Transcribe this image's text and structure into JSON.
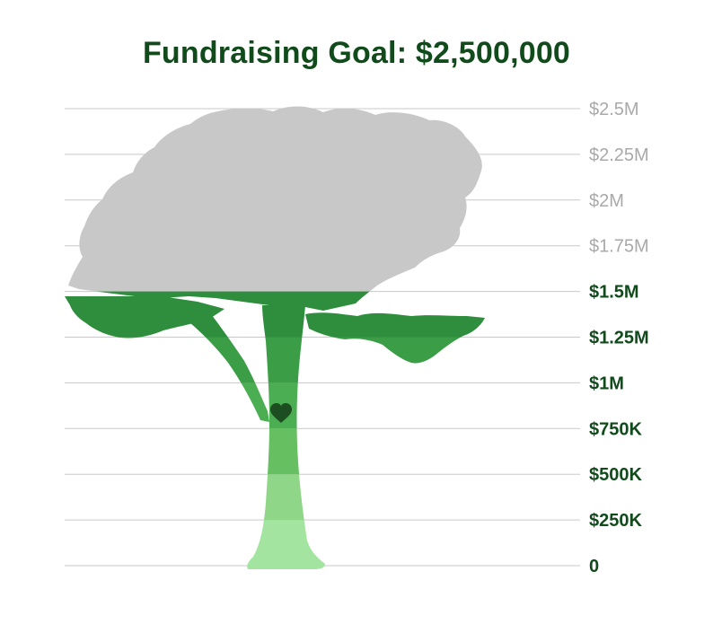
{
  "title": "Fundraising Goal: $2,500,000",
  "colors": {
    "title": "#114b1c",
    "unfilled": "#c8c8c8",
    "reached_label": "#114b1c",
    "unreached_label": "#a9a9a9",
    "gridline": "#c9c9c9",
    "heart": "#1c4e22",
    "bands": [
      "#a3e4a0",
      "#8fd688",
      "#66c062",
      "#4cae52",
      "#3b9e47",
      "#2e8e3e"
    ]
  },
  "chart_data": {
    "type": "thermometer",
    "title": "Fundraising Goal: $2,500,000",
    "goal": 2500000,
    "raised": 1500000,
    "ylim": [
      0,
      2500000
    ],
    "ticks": [
      {
        "value": 0,
        "label": "0"
      },
      {
        "value": 250000,
        "label": "$250K"
      },
      {
        "value": 500000,
        "label": "$500K"
      },
      {
        "value": 750000,
        "label": "$750K"
      },
      {
        "value": 1000000,
        "label": "$1M"
      },
      {
        "value": 1250000,
        "label": "$1.25M"
      },
      {
        "value": 1500000,
        "label": "$1.5M"
      },
      {
        "value": 1750000,
        "label": "$1.75M"
      },
      {
        "value": 2000000,
        "label": "$2M"
      },
      {
        "value": 2250000,
        "label": "$2.25M"
      },
      {
        "value": 2500000,
        "label": "$2.5M"
      }
    ],
    "fill_icon": "tree-icon",
    "marker_icon": "heart-icon"
  }
}
